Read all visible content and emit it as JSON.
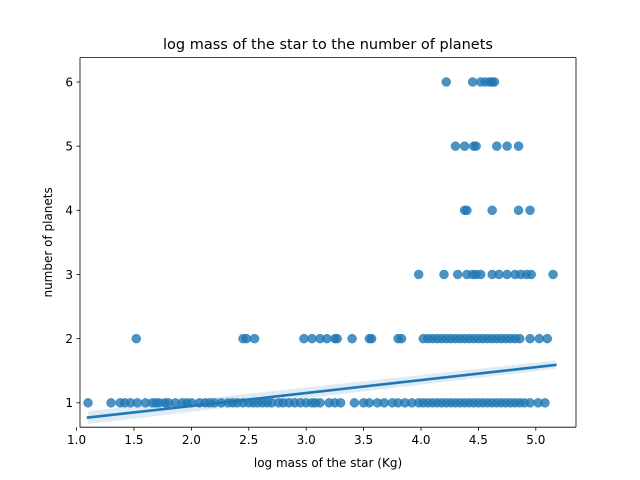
{
  "chart_data": {
    "type": "scatter",
    "title": "log mass of the star to the number of planets",
    "xlabel": "log mass of the star (Kg)",
    "ylabel": "number of planets",
    "xlim": [
      1.03,
      5.35
    ],
    "ylim": [
      0.62,
      6.38
    ],
    "xticks": [
      1.0,
      1.5,
      2.0,
      2.5,
      3.0,
      3.5,
      4.0,
      4.5,
      5.0
    ],
    "xtick_labels": [
      "1.0",
      "1.5",
      "2.0",
      "2.5",
      "3.0",
      "3.5",
      "4.0",
      "4.5",
      "5.0"
    ],
    "yticks": [
      1,
      2,
      3,
      4,
      5,
      6
    ],
    "ytick_labels": [
      "1",
      "2",
      "3",
      "4",
      "5",
      "6"
    ],
    "grid": false,
    "point_color": "#1f77b4",
    "regression": {
      "x": [
        1.1,
        5.17
      ],
      "y": [
        0.77,
        1.59
      ],
      "ci_lower": [
        0.67,
        1.53
      ],
      "ci_upper": [
        0.87,
        1.66
      ],
      "color": "#1f77b4"
    },
    "series": [
      {
        "points": [
          [
            1.1,
            1
          ],
          [
            1.3,
            1
          ],
          [
            1.38,
            1
          ],
          [
            1.42,
            1
          ],
          [
            1.47,
            1
          ],
          [
            1.53,
            1
          ],
          [
            1.6,
            1
          ],
          [
            1.66,
            1
          ],
          [
            1.69,
            1
          ],
          [
            1.72,
            1
          ],
          [
            1.77,
            1
          ],
          [
            1.8,
            1
          ],
          [
            1.86,
            1
          ],
          [
            1.92,
            1
          ],
          [
            1.96,
            1
          ],
          [
            2.0,
            1
          ],
          [
            2.07,
            1
          ],
          [
            2.12,
            1
          ],
          [
            2.16,
            1
          ],
          [
            2.2,
            1
          ],
          [
            2.26,
            1
          ],
          [
            2.32,
            1
          ],
          [
            2.36,
            1
          ],
          [
            2.4,
            1
          ],
          [
            2.45,
            1
          ],
          [
            2.5,
            1
          ],
          [
            2.54,
            1
          ],
          [
            2.58,
            1
          ],
          [
            2.62,
            1
          ],
          [
            2.66,
            1
          ],
          [
            2.7,
            1
          ],
          [
            2.76,
            1
          ],
          [
            2.8,
            1
          ],
          [
            2.85,
            1
          ],
          [
            2.9,
            1
          ],
          [
            2.95,
            1
          ],
          [
            3.0,
            1
          ],
          [
            3.05,
            1
          ],
          [
            3.08,
            1
          ],
          [
            3.12,
            1
          ],
          [
            3.2,
            1
          ],
          [
            3.25,
            1
          ],
          [
            3.3,
            1
          ],
          [
            3.42,
            1
          ],
          [
            3.5,
            1
          ],
          [
            3.55,
            1
          ],
          [
            3.62,
            1
          ],
          [
            3.68,
            1
          ],
          [
            3.75,
            1
          ],
          [
            3.8,
            1
          ],
          [
            3.86,
            1
          ],
          [
            3.92,
            1
          ],
          [
            3.98,
            1
          ],
          [
            4.02,
            1
          ],
          [
            4.06,
            1
          ],
          [
            4.1,
            1
          ],
          [
            4.14,
            1
          ],
          [
            4.18,
            1
          ],
          [
            4.22,
            1
          ],
          [
            4.26,
            1
          ],
          [
            4.3,
            1
          ],
          [
            4.34,
            1
          ],
          [
            4.38,
            1
          ],
          [
            4.42,
            1
          ],
          [
            4.46,
            1
          ],
          [
            4.5,
            1
          ],
          [
            4.54,
            1
          ],
          [
            4.58,
            1
          ],
          [
            4.62,
            1
          ],
          [
            4.66,
            1
          ],
          [
            4.7,
            1
          ],
          [
            4.74,
            1
          ],
          [
            4.78,
            1
          ],
          [
            4.82,
            1
          ],
          [
            4.86,
            1
          ],
          [
            4.9,
            1
          ],
          [
            4.95,
            1
          ],
          [
            5.02,
            1
          ],
          [
            5.08,
            1
          ],
          [
            1.52,
            2
          ],
          [
            2.45,
            2
          ],
          [
            2.48,
            2
          ],
          [
            2.55,
            2
          ],
          [
            2.98,
            2
          ],
          [
            3.05,
            2
          ],
          [
            3.12,
            2
          ],
          [
            3.18,
            2
          ],
          [
            3.25,
            2
          ],
          [
            3.27,
            2
          ],
          [
            3.4,
            2
          ],
          [
            3.55,
            2
          ],
          [
            3.57,
            2
          ],
          [
            3.8,
            2
          ],
          [
            3.83,
            2
          ],
          [
            4.02,
            2
          ],
          [
            4.06,
            2
          ],
          [
            4.1,
            2
          ],
          [
            4.14,
            2
          ],
          [
            4.18,
            2
          ],
          [
            4.22,
            2
          ],
          [
            4.26,
            2
          ],
          [
            4.3,
            2
          ],
          [
            4.34,
            2
          ],
          [
            4.38,
            2
          ],
          [
            4.42,
            2
          ],
          [
            4.46,
            2
          ],
          [
            4.5,
            2
          ],
          [
            4.54,
            2
          ],
          [
            4.58,
            2
          ],
          [
            4.62,
            2
          ],
          [
            4.66,
            2
          ],
          [
            4.7,
            2
          ],
          [
            4.74,
            2
          ],
          [
            4.78,
            2
          ],
          [
            4.82,
            2
          ],
          [
            4.86,
            2
          ],
          [
            4.95,
            2
          ],
          [
            5.03,
            2
          ],
          [
            5.1,
            2
          ],
          [
            3.98,
            3
          ],
          [
            4.2,
            3
          ],
          [
            4.32,
            3
          ],
          [
            4.4,
            3
          ],
          [
            4.45,
            3
          ],
          [
            4.48,
            3
          ],
          [
            4.52,
            3
          ],
          [
            4.62,
            3
          ],
          [
            4.68,
            3
          ],
          [
            4.75,
            3
          ],
          [
            4.82,
            3
          ],
          [
            4.87,
            3
          ],
          [
            4.92,
            3
          ],
          [
            4.96,
            3
          ],
          [
            5.15,
            3
          ],
          [
            4.38,
            4
          ],
          [
            4.4,
            4
          ],
          [
            4.62,
            4
          ],
          [
            4.85,
            4
          ],
          [
            4.95,
            4
          ],
          [
            4.3,
            5
          ],
          [
            4.38,
            5
          ],
          [
            4.46,
            5
          ],
          [
            4.48,
            5
          ],
          [
            4.66,
            5
          ],
          [
            4.75,
            5
          ],
          [
            4.85,
            5
          ],
          [
            4.22,
            6
          ],
          [
            4.45,
            6
          ],
          [
            4.52,
            6
          ],
          [
            4.56,
            6
          ],
          [
            4.6,
            6
          ],
          [
            4.62,
            6
          ],
          [
            4.64,
            6
          ]
        ]
      }
    ]
  }
}
